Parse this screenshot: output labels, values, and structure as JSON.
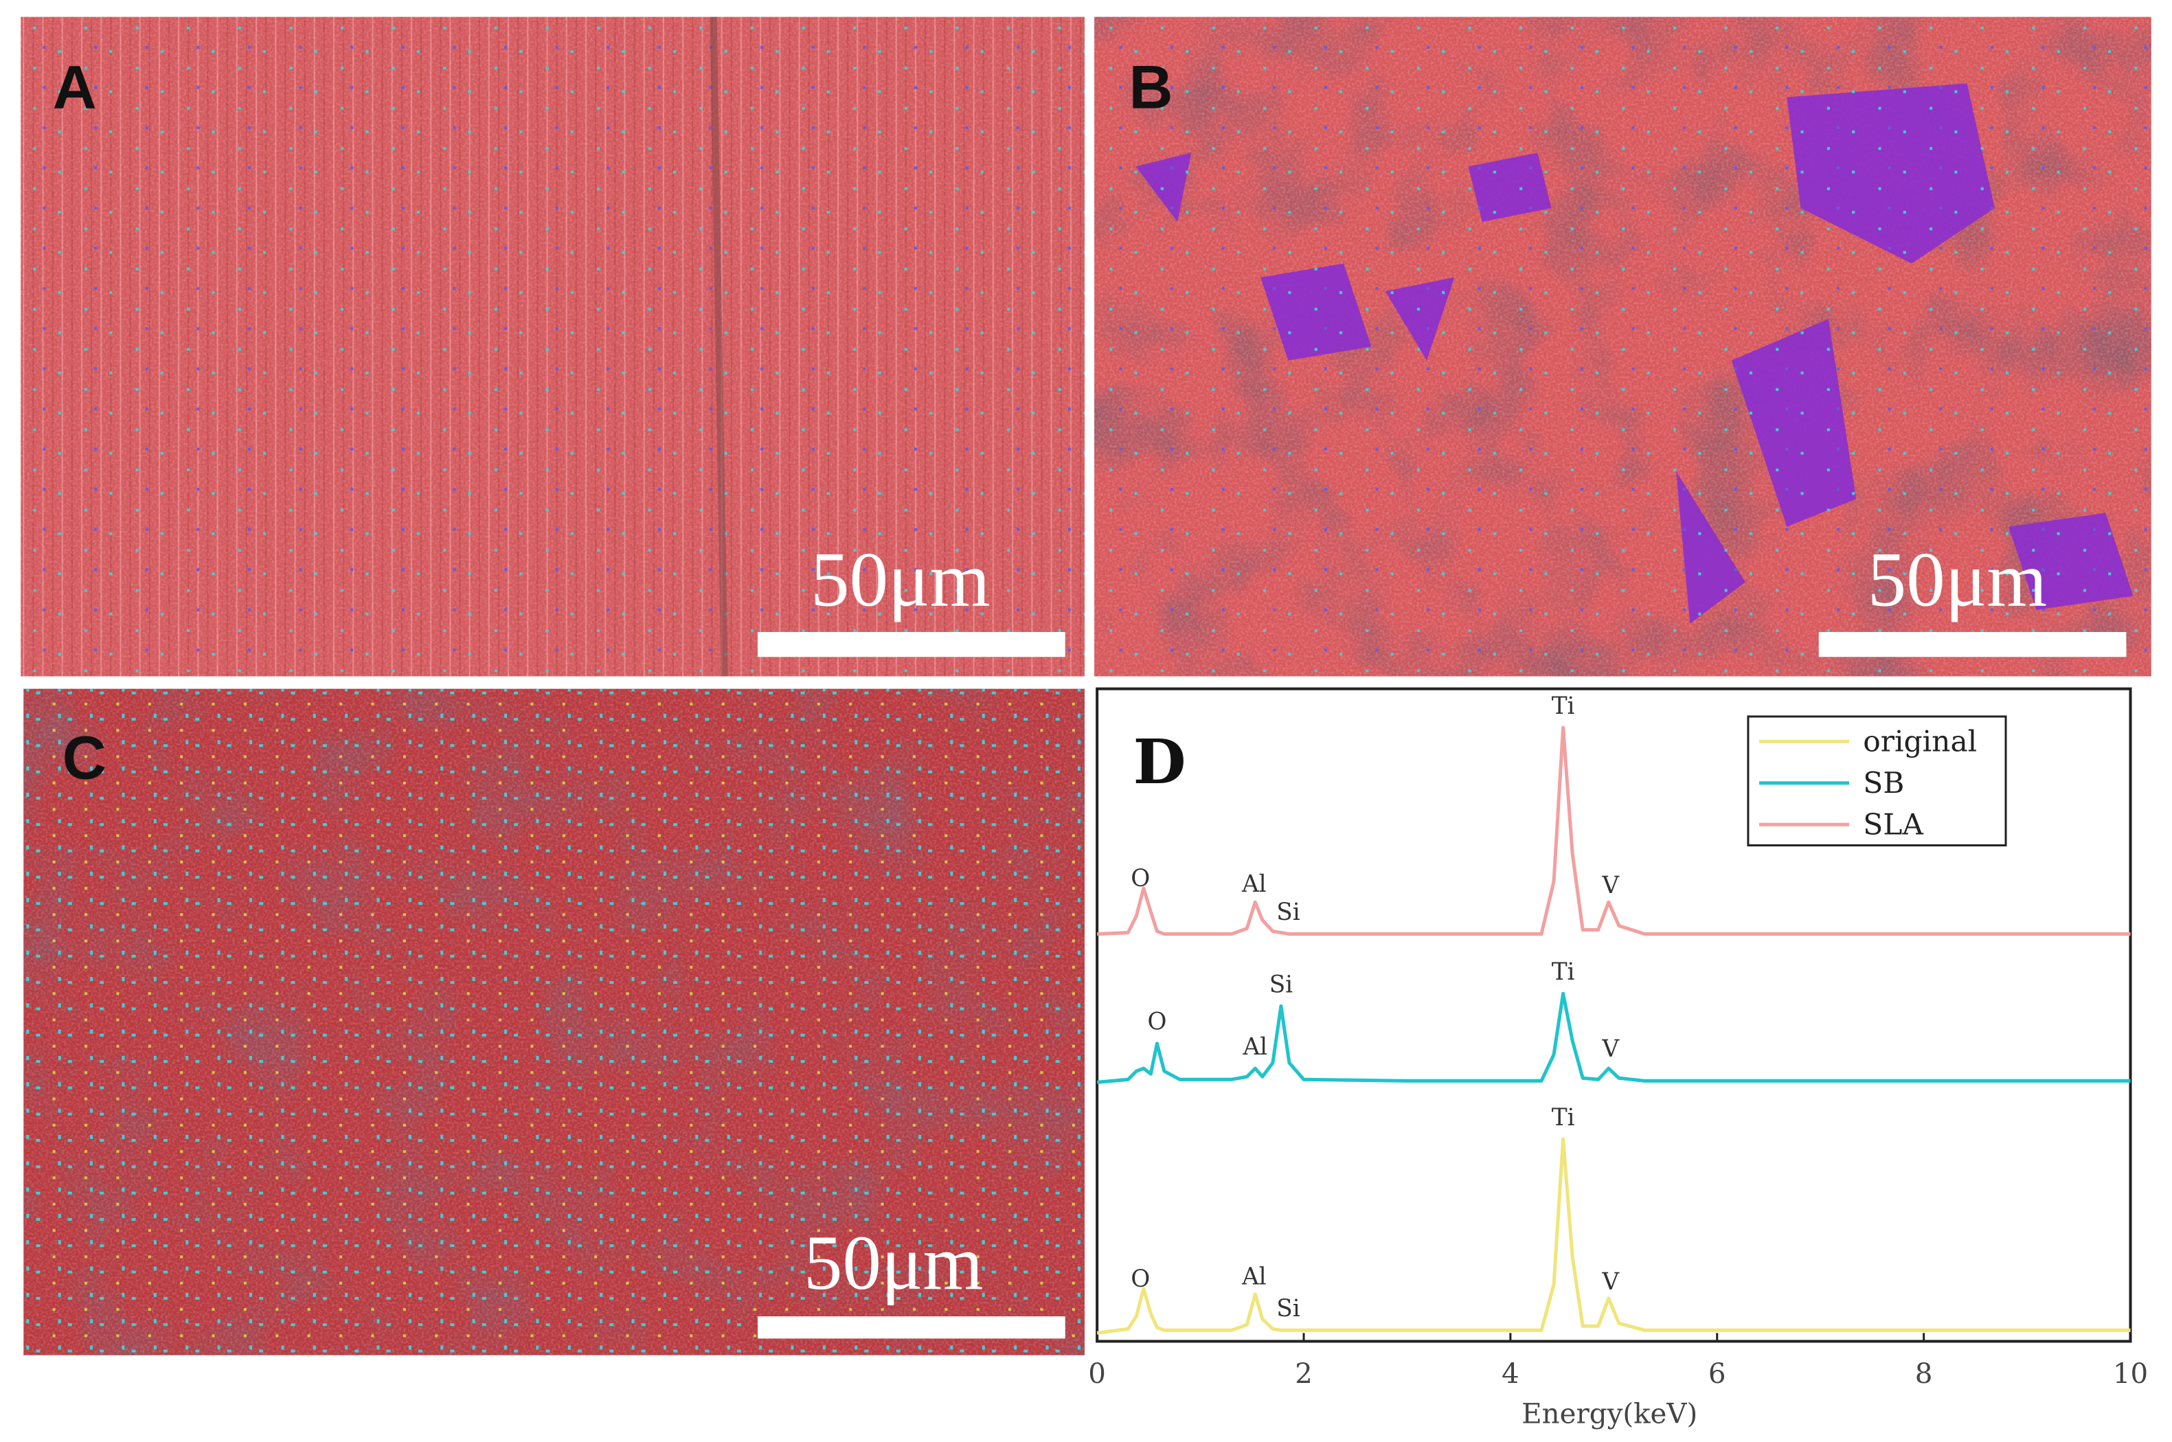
{
  "panels": [
    {
      "label": "A",
      "scale_bar": "50μm"
    },
    {
      "label": "B",
      "scale_bar": "50μm"
    },
    {
      "label": "C",
      "scale_bar": "50μm"
    }
  ],
  "chart_data": {
    "type": "line",
    "panel_label": "D",
    "xlabel": "Energy(keV)",
    "xlim": [
      0,
      10
    ],
    "xticks": [
      0,
      2,
      4,
      6,
      8,
      10
    ],
    "x": [
      0,
      0.3,
      0.38,
      0.45,
      0.52,
      0.58,
      0.65,
      0.8,
      1.3,
      1.45,
      1.53,
      1.6,
      1.7,
      1.78,
      1.86,
      2.0,
      3.0,
      4.3,
      4.42,
      4.51,
      4.6,
      4.7,
      4.85,
      4.95,
      5.05,
      5.3,
      6.0,
      10
    ],
    "series": [
      {
        "name": "original",
        "color": "#f0e57a",
        "values": [
          0,
          3,
          12,
          32,
          14,
          4,
          2,
          2,
          2,
          6,
          28,
          10,
          3,
          2,
          2,
          2,
          2,
          2,
          35,
          140,
          55,
          5,
          5,
          25,
          7,
          2,
          2,
          2
        ],
        "peak_labels": [
          {
            "text": "O",
            "x": 0.42
          },
          {
            "text": "Al",
            "x": 1.52
          },
          {
            "text": "Si",
            "x": 1.85
          },
          {
            "text": "Ti",
            "x": 4.51
          },
          {
            "text": "V",
            "x": 4.97
          }
        ]
      },
      {
        "name": "SB",
        "color": "#1fc4cc",
        "values": [
          0,
          2,
          8,
          10,
          6,
          28,
          8,
          2,
          2,
          4,
          10,
          4,
          14,
          55,
          14,
          2,
          1,
          1,
          20,
          64,
          30,
          3,
          2,
          10,
          3,
          1,
          1,
          1
        ],
        "peak_labels": [
          {
            "text": "O",
            "x": 0.58
          },
          {
            "text": "Al",
            "x": 1.53
          },
          {
            "text": "Si",
            "x": 1.78
          },
          {
            "text": "Ti",
            "x": 4.51
          },
          {
            "text": "V",
            "x": 4.97
          }
        ]
      },
      {
        "name": "SLA",
        "color": "#f2a0a0",
        "values": [
          2,
          3,
          15,
          35,
          18,
          4,
          2,
          2,
          2,
          6,
          25,
          12,
          4,
          3,
          2,
          2,
          2,
          2,
          40,
          151,
          60,
          5,
          5,
          25,
          8,
          2,
          2,
          2
        ],
        "peak_labels": [
          {
            "text": "O",
            "x": 0.42
          },
          {
            "text": "Al",
            "x": 1.52
          },
          {
            "text": "Si",
            "x": 1.85
          },
          {
            "text": "Ti",
            "x": 4.51
          },
          {
            "text": "V",
            "x": 4.97
          }
        ]
      }
    ]
  }
}
